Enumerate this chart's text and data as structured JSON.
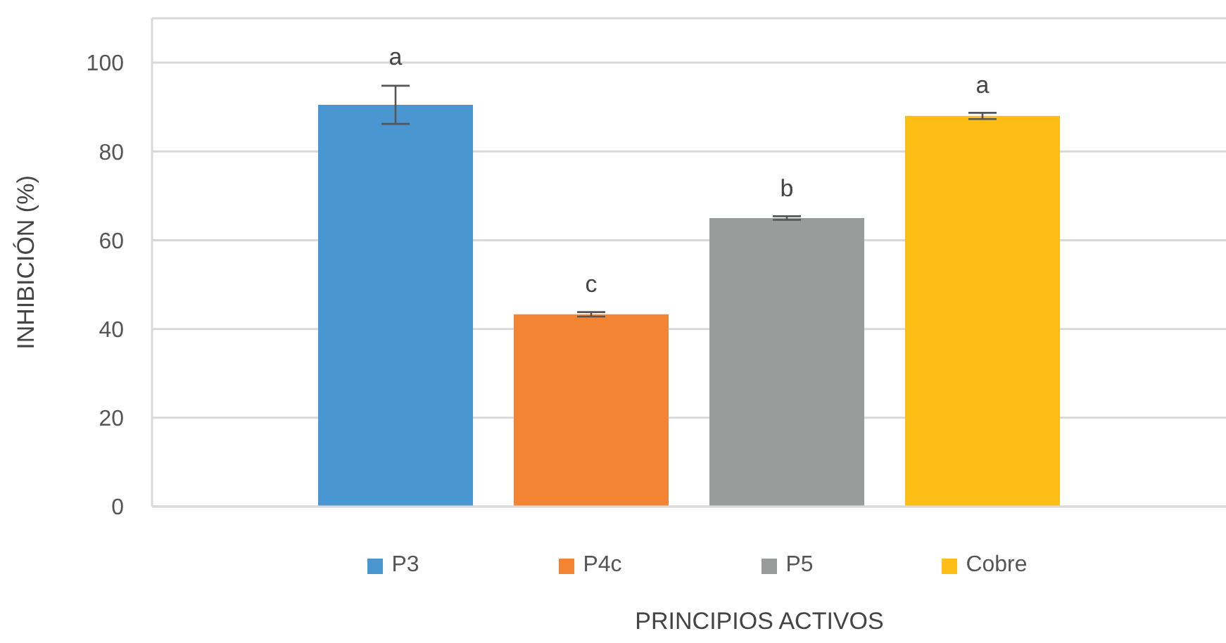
{
  "chart_data": {
    "type": "bar",
    "xlabel": "PRINCIPIOS ACTIVOS",
    "ylabel": "INHIBICIÓN (%)",
    "categories": [
      null
    ],
    "series": [
      {
        "name": "P3",
        "color": "#4a96d0",
        "values": [
          90.5
        ],
        "errors": [
          4.3
        ]
      },
      {
        "name": "P4c",
        "color": "#f38433",
        "values": [
          43.3
        ],
        "errors": [
          0.5
        ]
      },
      {
        "name": "P5",
        "color": "#9a9c9c",
        "values": [
          65
        ],
        "errors": [
          0.4
        ]
      },
      {
        "name": "Cobre",
        "color": "#fcbd14",
        "values": [
          88
        ],
        "errors": [
          0.7
        ]
      }
    ],
    "annotations": [
      "a",
      "c",
      "b",
      "a"
    ],
    "ylim": [
      0,
      110
    ],
    "yticks": [
      0,
      20,
      40,
      60,
      80,
      100,
      {
        "value": 110,
        "label": null
      }
    ],
    "grid": "y",
    "legend": "bottom"
  }
}
